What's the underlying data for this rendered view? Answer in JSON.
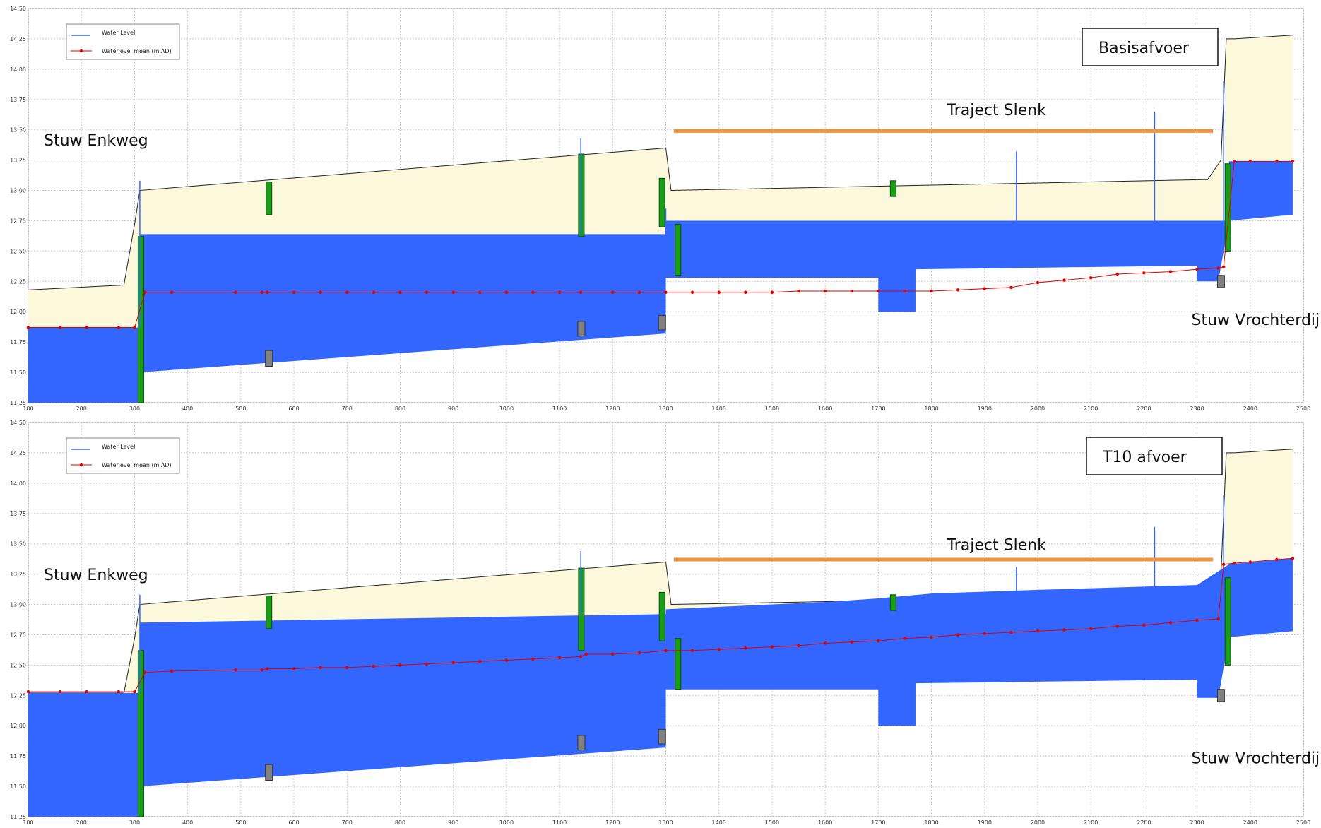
{
  "chart_data": [
    {
      "type": "area",
      "title": "Basisafvoer",
      "xlim": [
        100,
        2500
      ],
      "ylim": [
        11.25,
        14.5
      ],
      "x_ticks": [
        100,
        200,
        300,
        400,
        500,
        600,
        700,
        800,
        900,
        1000,
        1100,
        1200,
        1300,
        1400,
        1500,
        1600,
        1700,
        1800,
        1900,
        2000,
        2100,
        2200,
        2300,
        2400,
        2500
      ],
      "y_ticks": [
        11.25,
        11.5,
        11.75,
        12.0,
        12.25,
        12.5,
        12.75,
        13.0,
        13.25,
        13.5,
        13.75,
        14.0,
        14.25,
        14.5
      ],
      "y_tick_labels": [
        "11,25",
        "11,50",
        "11,75",
        "12,00",
        "12,25",
        "12,50",
        "12,75",
        "13,00",
        "13,25",
        "13,50",
        "13,75",
        "14,00",
        "14,25",
        "14,50"
      ],
      "legend": {
        "placement": "top-left",
        "items": [
          "Water Level",
          "Waterlevel mean (m AD)"
        ]
      },
      "annotations": [
        {
          "text": "Stuw Enkweg",
          "x": 100,
          "y": 13.37
        },
        {
          "text": "Traject Slenk",
          "x": 1800,
          "y": 13.62
        },
        {
          "text": "Stuw Vrochterdijk",
          "x": 2260,
          "y": 11.89
        }
      ],
      "traject_bar": {
        "x": [
          1315,
          2330
        ],
        "y": 13.49
      },
      "bank": {
        "x": [
          100,
          280,
          300,
          310,
          1300,
          1310,
          2320,
          2345,
          2355,
          2370,
          2480
        ],
        "y": [
          12.18,
          12.22,
          12.72,
          13.0,
          13.35,
          13.0,
          13.09,
          13.25,
          14.25,
          14.25,
          14.28
        ]
      },
      "bed": {
        "x": [
          100,
          310,
          310,
          1300,
          1300,
          1700,
          1700,
          1770,
          1770,
          2300,
          2300,
          2340,
          2360,
          2480
        ],
        "y": [
          11.25,
          11.25,
          11.5,
          11.82,
          12.28,
          12.28,
          12.0,
          12.0,
          12.35,
          12.38,
          12.25,
          12.25,
          12.75,
          12.8
        ]
      },
      "water_surface": {
        "x": [
          100,
          310,
          310,
          1300,
          1300,
          2360,
          2360,
          2480
        ],
        "y": [
          11.87,
          11.87,
          12.64,
          12.64,
          12.75,
          12.75,
          13.24,
          13.24
        ]
      },
      "series": [
        {
          "name": "Waterlevel mean (m AD)",
          "x": [
            100,
            160,
            210,
            270,
            300,
            320,
            370,
            490,
            540,
            550,
            600,
            650,
            700,
            750,
            800,
            850,
            900,
            950,
            1000,
            1050,
            1100,
            1140,
            1200,
            1250,
            1300,
            1350,
            1400,
            1450,
            1500,
            1550,
            1600,
            1650,
            1700,
            1750,
            1800,
            1850,
            1900,
            1950,
            2000,
            2050,
            2100,
            2150,
            2200,
            2250,
            2300,
            2340,
            2350,
            2370,
            2400,
            2450,
            2480
          ],
          "y": [
            11.87,
            11.87,
            11.87,
            11.87,
            11.87,
            12.16,
            12.16,
            12.16,
            12.16,
            12.16,
            12.16,
            12.16,
            12.16,
            12.16,
            12.16,
            12.16,
            12.16,
            12.16,
            12.16,
            12.16,
            12.16,
            12.16,
            12.16,
            12.16,
            12.16,
            12.16,
            12.16,
            12.16,
            12.16,
            12.17,
            12.17,
            12.17,
            12.17,
            12.17,
            12.17,
            12.18,
            12.19,
            12.2,
            12.24,
            12.26,
            12.28,
            12.31,
            12.32,
            12.33,
            12.35,
            12.36,
            12.37,
            13.24,
            13.24,
            13.24,
            13.24
          ]
        },
        {
          "name": "Water Level",
          "x": [
            310,
            1140,
            1300,
            1960,
            2220,
            2350
          ],
          "y": [
            13.08,
            13.43,
            12.85,
            13.32,
            13.65,
            13.9
          ]
        }
      ]
    },
    {
      "type": "area",
      "title": "T10 afvoer",
      "xlim": [
        100,
        2500
      ],
      "ylim": [
        11.25,
        14.5
      ],
      "x_ticks": [
        100,
        200,
        300,
        400,
        500,
        600,
        700,
        800,
        900,
        1000,
        1100,
        1200,
        1300,
        1400,
        1500,
        1600,
        1700,
        1800,
        1900,
        2000,
        2100,
        2200,
        2300,
        2400,
        2500
      ],
      "y_ticks": [
        11.25,
        11.5,
        11.75,
        12.0,
        12.25,
        12.5,
        12.75,
        13.0,
        13.25,
        13.5,
        13.75,
        14.0,
        14.25,
        14.5
      ],
      "y_tick_labels": [
        "11,25",
        "11,50",
        "11,75",
        "12,00",
        "12,25",
        "12,50",
        "12,75",
        "13,00",
        "13,25",
        "13,50",
        "13,75",
        "14,00",
        "14,25",
        "14,50"
      ],
      "legend": {
        "placement": "top-left",
        "items": [
          "Water Level",
          "Waterlevel mean (m AD)"
        ]
      },
      "annotations": [
        {
          "text": "Stuw Enkweg",
          "x": 100,
          "y": 13.2
        },
        {
          "text": "Traject Slenk",
          "x": 1800,
          "y": 13.45
        },
        {
          "text": "Stuw Vrochterdijk",
          "x": 2260,
          "y": 11.69
        }
      ],
      "traject_bar": {
        "x": [
          1315,
          2330
        ],
        "y": 13.37
      },
      "bank": {
        "x": [
          100,
          280,
          300,
          310,
          1300,
          1310,
          2320,
          2345,
          2355,
          2370,
          2480
        ],
        "y": [
          12.27,
          12.27,
          12.72,
          13.0,
          13.35,
          13.0,
          13.08,
          13.25,
          14.25,
          14.25,
          14.28
        ]
      },
      "bed": {
        "x": [
          100,
          310,
          310,
          1300,
          1300,
          1700,
          1700,
          1770,
          1770,
          2300,
          2300,
          2340,
          2360,
          2480
        ],
        "y": [
          11.25,
          11.25,
          11.5,
          11.82,
          12.3,
          12.3,
          12.0,
          12.0,
          12.35,
          12.38,
          12.23,
          12.23,
          12.73,
          12.78
        ]
      },
      "water_surface": {
        "x": [
          100,
          310,
          310,
          1300,
          1300,
          1600,
          1700,
          1800,
          2000,
          2300,
          2360,
          2480
        ],
        "y": [
          12.27,
          12.27,
          12.85,
          12.92,
          12.96,
          13.02,
          13.05,
          13.09,
          13.12,
          13.16,
          13.33,
          13.38
        ]
      },
      "series": [
        {
          "name": "Waterlevel mean (m AD)",
          "x": [
            100,
            160,
            210,
            270,
            300,
            320,
            370,
            490,
            540,
            550,
            600,
            650,
            700,
            750,
            800,
            850,
            900,
            950,
            1000,
            1050,
            1100,
            1140,
            1150,
            1200,
            1250,
            1300,
            1350,
            1400,
            1450,
            1500,
            1550,
            1600,
            1650,
            1700,
            1750,
            1800,
            1850,
            1900,
            1950,
            2000,
            2050,
            2100,
            2150,
            2200,
            2250,
            2300,
            2340,
            2350,
            2370,
            2400,
            2450,
            2480
          ],
          "y": [
            12.28,
            12.28,
            12.28,
            12.28,
            12.28,
            12.44,
            12.45,
            12.46,
            12.46,
            12.47,
            12.47,
            12.48,
            12.48,
            12.49,
            12.5,
            12.51,
            12.52,
            12.53,
            12.54,
            12.55,
            12.56,
            12.57,
            12.59,
            12.59,
            12.6,
            12.62,
            12.62,
            12.63,
            12.64,
            12.65,
            12.66,
            12.68,
            12.69,
            12.7,
            12.72,
            12.73,
            12.75,
            12.76,
            12.77,
            12.78,
            12.79,
            12.8,
            12.82,
            12.83,
            12.85,
            12.87,
            12.88,
            13.33,
            13.34,
            13.35,
            13.37,
            13.38
          ]
        },
        {
          "name": "Water Level",
          "x": [
            310,
            1140,
            1300,
            1960,
            2220,
            2350
          ],
          "y": [
            13.08,
            13.44,
            12.85,
            13.31,
            13.64,
            13.9
          ]
        }
      ]
    }
  ]
}
